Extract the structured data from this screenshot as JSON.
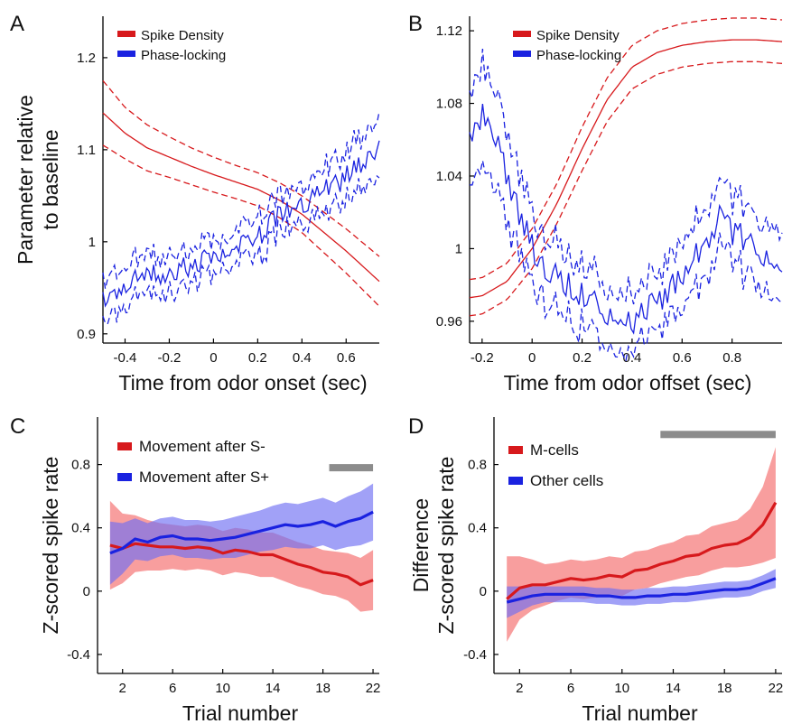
{
  "colors": {
    "red": "#d7191c",
    "blue": "#1a22e0",
    "red_fill": "#f46a6a",
    "blue_fill": "#6f6ff2",
    "significance_bar": "#8c8c8c"
  },
  "chart_data": [
    {
      "panel": "A",
      "type": "line",
      "xlabel": "Time from odor onset (sec)",
      "ylabel": [
        "Parameter relative",
        "to baseline"
      ],
      "xlim": [
        -0.5,
        0.75
      ],
      "ylim": [
        0.89,
        1.245
      ],
      "xticks": [
        -0.4,
        -0.2,
        0,
        0.2,
        0.4,
        0.6
      ],
      "xticklabels": [
        "-0.4",
        "-0.2",
        "0",
        "0.2",
        "0.4",
        "0.6"
      ],
      "yticks": [
        0.9,
        1.0,
        1.1,
        1.2
      ],
      "yticklabels": [
        "0.9",
        "1",
        "1.1",
        "1.2"
      ],
      "legend": "top-left",
      "error_style": "dashed",
      "series": [
        {
          "name": "Spike Density",
          "color": "red",
          "noise": 0,
          "x": [
            -0.5,
            -0.4,
            -0.3,
            -0.2,
            -0.1,
            0,
            0.1,
            0.2,
            0.3,
            0.4,
            0.5,
            0.6,
            0.7,
            0.75
          ],
          "mean": [
            1.14,
            1.118,
            1.102,
            1.092,
            1.082,
            1.073,
            1.065,
            1.057,
            1.045,
            1.03,
            1.01,
            0.99,
            0.968,
            0.957
          ],
          "err": [
            0.035,
            0.028,
            0.025,
            0.022,
            0.02,
            0.019,
            0.018,
            0.018,
            0.019,
            0.02,
            0.022,
            0.024,
            0.026,
            0.027
          ]
        },
        {
          "name": "Phase-locking",
          "color": "blue",
          "noise": 0.012,
          "x": [
            -0.5,
            -0.4,
            -0.3,
            -0.2,
            -0.1,
            0,
            0.1,
            0.2,
            0.3,
            0.4,
            0.5,
            0.6,
            0.7,
            0.75
          ],
          "mean": [
            0.94,
            0.955,
            0.962,
            0.968,
            0.975,
            0.982,
            0.99,
            1.005,
            1.03,
            1.042,
            1.055,
            1.07,
            1.09,
            1.1
          ],
          "err": [
            0.022,
            0.02,
            0.019,
            0.019,
            0.018,
            0.018,
            0.018,
            0.019,
            0.02,
            0.021,
            0.023,
            0.026,
            0.03,
            0.035
          ]
        }
      ]
    },
    {
      "panel": "B",
      "type": "line",
      "xlabel": "Time from odor offset (sec)",
      "ylabel": [],
      "xlim": [
        -0.25,
        1.0
      ],
      "ylim": [
        0.948,
        1.128
      ],
      "xticks": [
        -0.2,
        0,
        0.2,
        0.4,
        0.6,
        0.8
      ],
      "xticklabels": [
        "-0.2",
        "0",
        "0.2",
        "0.4",
        "0.6",
        "0.8"
      ],
      "yticks": [
        0.96,
        1.0,
        1.04,
        1.08,
        1.12
      ],
      "yticklabels": [
        "0.96",
        "1",
        "1.04",
        "1.08",
        "1.12"
      ],
      "legend": "top-right",
      "error_style": "dashed",
      "series": [
        {
          "name": "Spike Density",
          "color": "red",
          "noise": 0,
          "x": [
            -0.25,
            -0.2,
            -0.1,
            0,
            0.1,
            0.2,
            0.3,
            0.4,
            0.5,
            0.6,
            0.7,
            0.8,
            0.9,
            1.0
          ],
          "mean": [
            0.973,
            0.974,
            0.982,
            1.0,
            1.025,
            1.055,
            1.082,
            1.1,
            1.108,
            1.112,
            1.114,
            1.115,
            1.115,
            1.114
          ],
          "err": [
            0.01,
            0.01,
            0.01,
            0.011,
            0.011,
            0.012,
            0.012,
            0.012,
            0.012,
            0.012,
            0.012,
            0.012,
            0.012,
            0.012
          ]
        },
        {
          "name": "Phase-locking",
          "color": "blue",
          "noise": 0.008,
          "x": [
            -0.25,
            -0.2,
            -0.15,
            -0.1,
            -0.05,
            0,
            0.05,
            0.1,
            0.2,
            0.3,
            0.4,
            0.5,
            0.6,
            0.7,
            0.75,
            0.8,
            0.9,
            1.0
          ],
          "mean": [
            1.06,
            1.075,
            1.065,
            1.04,
            1.02,
            1.0,
            0.99,
            0.985,
            0.975,
            0.965,
            0.958,
            0.97,
            0.985,
            1.005,
            1.02,
            1.01,
            1.0,
            0.985
          ],
          "err": [
            0.025,
            0.028,
            0.026,
            0.024,
            0.022,
            0.02,
            0.018,
            0.018,
            0.017,
            0.016,
            0.016,
            0.016,
            0.017,
            0.018,
            0.018,
            0.018,
            0.018,
            0.019
          ]
        }
      ]
    },
    {
      "panel": "C",
      "type": "line",
      "xlabel": "Trial number",
      "ylabel": [
        "Z-scored spike rate"
      ],
      "xlim": [
        0,
        22.5
      ],
      "ylim": [
        -0.52,
        1.1
      ],
      "xticks": [
        2,
        6,
        10,
        14,
        18,
        22
      ],
      "xticklabels": [
        "2",
        "6",
        "10",
        "14",
        "18",
        "22"
      ],
      "yticks": [
        -0.4,
        0,
        0.4,
        0.8
      ],
      "yticklabels": [
        "-0.4",
        "0",
        "0.4",
        "0.8"
      ],
      "legend": "top-left",
      "error_style": "shaded",
      "significance_bar": [
        18.5,
        22
      ],
      "significance_bar_y": 0.78,
      "series": [
        {
          "name": "Movement after S-",
          "color": "red",
          "x": [
            1,
            2,
            3,
            4,
            5,
            6,
            7,
            8,
            9,
            10,
            11,
            12,
            13,
            14,
            15,
            16,
            17,
            18,
            19,
            20,
            21,
            22
          ],
          "mean": [
            0.29,
            0.27,
            0.3,
            0.29,
            0.28,
            0.28,
            0.27,
            0.28,
            0.27,
            0.24,
            0.26,
            0.25,
            0.23,
            0.23,
            0.2,
            0.17,
            0.15,
            0.12,
            0.11,
            0.09,
            0.04,
            0.07
          ],
          "err": [
            0.28,
            0.22,
            0.18,
            0.16,
            0.15,
            0.14,
            0.14,
            0.14,
            0.14,
            0.14,
            0.14,
            0.14,
            0.14,
            0.14,
            0.14,
            0.14,
            0.14,
            0.14,
            0.14,
            0.15,
            0.17,
            0.19
          ]
        },
        {
          "name": "Movement after S+",
          "color": "blue",
          "x": [
            1,
            2,
            3,
            4,
            5,
            6,
            7,
            8,
            9,
            10,
            11,
            12,
            13,
            14,
            15,
            16,
            17,
            18,
            19,
            20,
            21,
            22
          ],
          "mean": [
            0.24,
            0.27,
            0.33,
            0.31,
            0.34,
            0.35,
            0.33,
            0.33,
            0.32,
            0.33,
            0.34,
            0.36,
            0.38,
            0.4,
            0.42,
            0.41,
            0.42,
            0.44,
            0.41,
            0.44,
            0.46,
            0.5
          ],
          "err": [
            0.2,
            0.16,
            0.13,
            0.12,
            0.12,
            0.12,
            0.12,
            0.12,
            0.12,
            0.12,
            0.13,
            0.13,
            0.13,
            0.14,
            0.14,
            0.14,
            0.15,
            0.15,
            0.15,
            0.16,
            0.17,
            0.18
          ]
        }
      ]
    },
    {
      "panel": "D",
      "type": "line",
      "xlabel": "Trial number",
      "ylabel": [
        "Difference",
        "Z-scored spike rate"
      ],
      "xlim": [
        0,
        22.5
      ],
      "ylim": [
        -0.52,
        1.1
      ],
      "xticks": [
        2,
        6,
        10,
        14,
        18,
        22
      ],
      "xticklabels": [
        "2",
        "6",
        "10",
        "14",
        "18",
        "22"
      ],
      "yticks": [
        -0.4,
        0,
        0.4,
        0.8
      ],
      "yticklabels": [
        "-0.4",
        "0",
        "0.4",
        "0.8"
      ],
      "legend": "top-left",
      "error_style": "shaded",
      "significance_bar": [
        13,
        22
      ],
      "significance_bar_y": 0.99,
      "series": [
        {
          "name": "M-cells",
          "color": "red",
          "x": [
            1,
            2,
            3,
            4,
            5,
            6,
            7,
            8,
            9,
            10,
            11,
            12,
            13,
            14,
            15,
            16,
            17,
            18,
            19,
            20,
            21,
            22
          ],
          "mean": [
            -0.05,
            0.02,
            0.04,
            0.04,
            0.06,
            0.08,
            0.07,
            0.08,
            0.1,
            0.09,
            0.13,
            0.14,
            0.17,
            0.19,
            0.22,
            0.23,
            0.27,
            0.29,
            0.3,
            0.34,
            0.42,
            0.56
          ],
          "err": [
            0.27,
            0.2,
            0.16,
            0.13,
            0.12,
            0.12,
            0.12,
            0.12,
            0.12,
            0.12,
            0.12,
            0.12,
            0.12,
            0.12,
            0.13,
            0.13,
            0.14,
            0.14,
            0.15,
            0.18,
            0.24,
            0.35
          ]
        },
        {
          "name": "Other cells",
          "color": "blue",
          "x": [
            1,
            2,
            3,
            4,
            5,
            6,
            7,
            8,
            9,
            10,
            11,
            12,
            13,
            14,
            15,
            16,
            17,
            18,
            19,
            20,
            21,
            22
          ],
          "mean": [
            -0.07,
            -0.05,
            -0.03,
            -0.02,
            -0.02,
            -0.02,
            -0.02,
            -0.03,
            -0.03,
            -0.04,
            -0.04,
            -0.03,
            -0.03,
            -0.02,
            -0.02,
            -0.01,
            0.0,
            0.01,
            0.01,
            0.02,
            0.05,
            0.08
          ],
          "err": [
            0.1,
            0.08,
            0.06,
            0.05,
            0.05,
            0.05,
            0.05,
            0.05,
            0.05,
            0.05,
            0.05,
            0.05,
            0.05,
            0.05,
            0.05,
            0.05,
            0.05,
            0.05,
            0.05,
            0.05,
            0.05,
            0.06
          ]
        }
      ]
    }
  ]
}
